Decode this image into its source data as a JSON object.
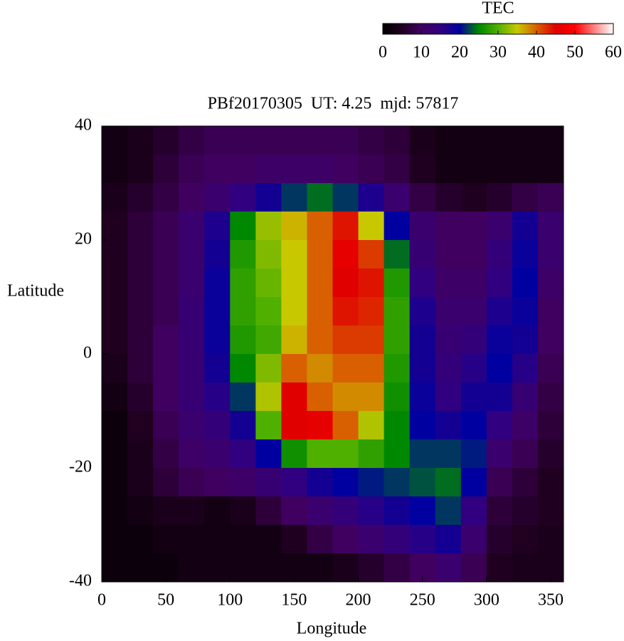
{
  "chart_data": {
    "type": "heatmap",
    "title": "PBf20170305  UT: 4.25  mjd: 57817",
    "x_label": "Longitude",
    "y_label": "Latitude",
    "colorbar_label": "TEC",
    "x": [
      10,
      30,
      50,
      70,
      90,
      110,
      130,
      150,
      170,
      190,
      210,
      230,
      250,
      270,
      290,
      310,
      330,
      350
    ],
    "y": [
      37.5,
      32.5,
      27.5,
      22.5,
      17.5,
      12.5,
      7.5,
      2.5,
      -2.5,
      -7.5,
      -12.5,
      -17.5,
      -22.5,
      -27.5,
      -32.5,
      -37.5
    ],
    "z": [
      [
        3,
        4,
        6,
        8,
        9,
        9,
        9,
        9,
        9,
        9,
        8,
        7,
        4,
        3,
        3,
        3,
        3,
        3
      ],
      [
        3,
        4,
        7,
        9,
        10,
        10,
        11,
        11,
        11,
        10,
        9,
        8,
        5,
        3,
        3,
        3,
        3,
        3
      ],
      [
        4,
        6,
        8,
        10,
        12,
        15,
        18,
        22,
        24,
        22,
        17,
        12,
        8,
        6,
        5,
        6,
        8,
        9
      ],
      [
        5,
        7,
        9,
        12,
        17,
        25,
        33,
        36,
        40,
        44,
        35,
        20,
        12,
        10,
        10,
        12,
        18,
        12
      ],
      [
        5,
        7,
        9,
        12,
        18,
        27,
        32,
        35,
        40,
        46,
        42,
        24,
        13,
        10,
        10,
        14,
        19,
        12
      ],
      [
        5,
        7,
        9,
        12,
        19,
        28,
        31,
        35,
        40,
        45,
        44,
        27,
        15,
        11,
        11,
        15,
        20,
        11
      ],
      [
        5,
        7,
        9,
        13,
        19,
        28,
        30,
        35,
        40,
        44,
        43,
        28,
        17,
        12,
        12,
        17,
        19,
        10
      ],
      [
        5,
        7,
        10,
        13,
        19,
        27,
        29,
        36,
        40,
        42,
        42,
        28,
        18,
        13,
        14,
        19,
        18,
        10
      ],
      [
        4,
        7,
        10,
        13,
        18,
        25,
        32,
        40,
        38,
        40,
        40,
        27,
        18,
        14,
        16,
        20,
        16,
        9
      ],
      [
        3,
        6,
        10,
        13,
        16,
        22,
        34,
        45,
        40,
        38,
        38,
        26,
        19,
        15,
        18,
        18,
        13,
        8
      ],
      [
        2,
        5,
        9,
        12,
        14,
        18,
        30,
        45,
        46,
        40,
        34,
        25,
        20,
        18,
        20,
        15,
        11,
        7
      ],
      [
        2,
        4,
        8,
        11,
        12,
        15,
        20,
        26,
        30,
        30,
        28,
        25,
        22,
        22,
        21,
        12,
        9,
        6
      ],
      [
        2,
        4,
        7,
        9,
        10,
        11,
        13,
        15,
        18,
        20,
        21,
        22,
        23,
        24,
        20,
        9,
        7,
        5
      ],
      [
        2,
        3,
        4,
        4,
        3,
        4,
        7,
        10,
        12,
        14,
        16,
        18,
        20,
        22,
        15,
        7,
        6,
        5
      ],
      [
        2,
        2,
        3,
        3,
        3,
        3,
        3,
        5,
        8,
        10,
        12,
        14,
        16,
        18,
        12,
        6,
        5,
        4
      ],
      [
        2,
        2,
        2,
        3,
        3,
        3,
        3,
        3,
        3,
        4,
        6,
        8,
        10,
        12,
        9,
        5,
        4,
        4
      ]
    ],
    "xlim": [
      0,
      360
    ],
    "xticks": [
      0,
      50,
      100,
      150,
      200,
      250,
      300,
      350
    ],
    "ylim": [
      -40,
      40
    ],
    "yticks": [
      -40,
      -20,
      0,
      20,
      40
    ],
    "zlim": [
      0,
      60
    ],
    "cticks": [
      0,
      10,
      20,
      30,
      40,
      50,
      60
    ],
    "colormap": [
      "#000000",
      "#200020",
      "#400060",
      "#300080",
      "#0000a0",
      "#008800",
      "#50b000",
      "#c8c800",
      "#d86000",
      "#e00000",
      "#ff0000",
      "#ff8080",
      "#ffffff"
    ]
  }
}
